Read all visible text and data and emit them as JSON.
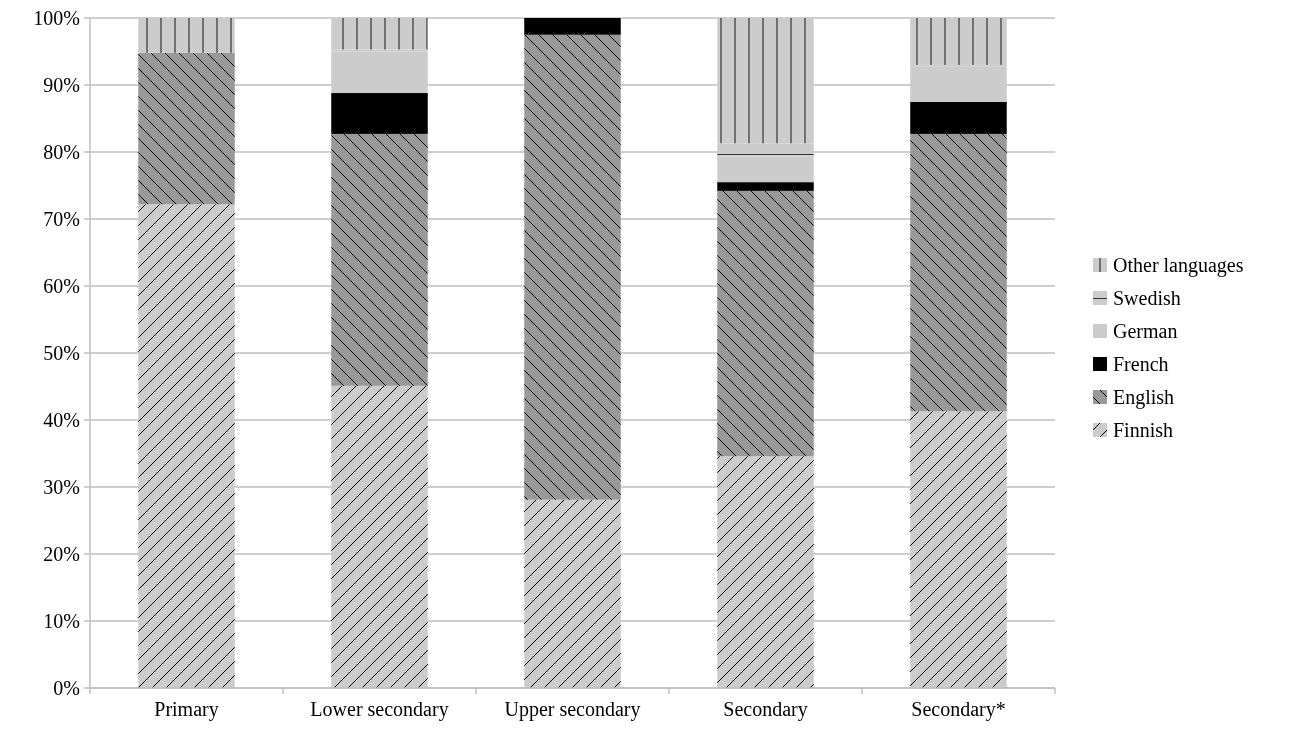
{
  "chart_data": {
    "type": "bar",
    "stacked": true,
    "categories": [
      "Primary",
      "Lower secondary",
      "Upper secondary",
      "Secondary",
      "Secondary*"
    ],
    "series": [
      {
        "name": "Finnish",
        "color": "#cccccc",
        "values": [
          72.2,
          45.1,
          28.1,
          34.6,
          41.3
        ]
      },
      {
        "name": "English",
        "color": "#999999",
        "values": [
          22.6,
          37.6,
          69.4,
          39.6,
          41.4
        ]
      },
      {
        "name": "French",
        "color": "#000000",
        "values": [
          0,
          6.1,
          2.5,
          1.3,
          4.8
        ]
      },
      {
        "name": "German",
        "color": "#cccccc",
        "values": [
          0,
          6.2,
          0,
          3.8,
          5.3
        ]
      },
      {
        "name": "Swedish",
        "color": "#cccccc",
        "values": [
          0,
          0.3,
          0,
          2.0,
          0.2
        ]
      },
      {
        "name": "Other languages",
        "color": "#cccccc",
        "values": [
          5.2,
          4.7,
          0,
          18.7,
          7.0
        ]
      }
    ],
    "ylim": [
      0,
      100
    ],
    "yticks": [
      {
        "value": 0,
        "label": "0%"
      },
      {
        "value": 10,
        "label": "10%"
      },
      {
        "value": 20,
        "label": "20%"
      },
      {
        "value": 30,
        "label": "30%"
      },
      {
        "value": 40,
        "label": "40%"
      },
      {
        "value": 50,
        "label": "50%"
      },
      {
        "value": 60,
        "label": "60%"
      },
      {
        "value": 70,
        "label": "70%"
      },
      {
        "value": 80,
        "label": "80%"
      },
      {
        "value": 90,
        "label": "90%"
      },
      {
        "value": 100,
        "label": "100%"
      }
    ],
    "grid": "y",
    "legend": "right"
  }
}
